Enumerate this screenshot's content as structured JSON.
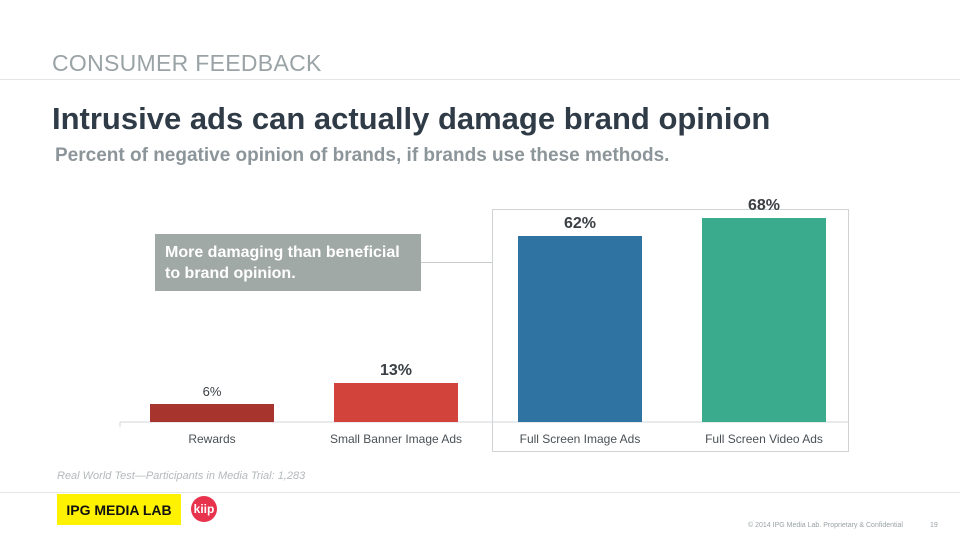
{
  "header": {
    "section": "CONSUMER FEEDBACK",
    "title": "Intrusive ads can actually damage brand opinion",
    "subtitle": "Percent of negative opinion of brands, if brands use these methods."
  },
  "callout": "More damaging than beneficial to brand opinion.",
  "chart_data": {
    "type": "bar",
    "categories": [
      "Rewards",
      "Small Banner Image Ads",
      "Full Screen Image Ads",
      "Full Screen Video Ads"
    ],
    "values": [
      6,
      13,
      62,
      68
    ],
    "value_labels": [
      "6%",
      "13%",
      "62%",
      "68%"
    ],
    "colors": [
      "#a8342e",
      "#d2433c",
      "#2e73a1",
      "#3aac8d"
    ],
    "ylim": [
      0,
      80
    ],
    "title": "Percent of negative opinion of brands, if brands use these methods.",
    "xlabel": "",
    "ylabel": "",
    "grid": false,
    "highlighted_categories": [
      "Full Screen Image Ads",
      "Full Screen Video Ads"
    ]
  },
  "footnote": "Real World Test—Participants in Media Trial: 1,283",
  "footer": {
    "logo_ipg": "IPG MEDIA LAB",
    "logo_kiip": "kiip",
    "copyright": "© 2014 IPG Media Lab. Proprietary & Confidential",
    "page": "19"
  }
}
